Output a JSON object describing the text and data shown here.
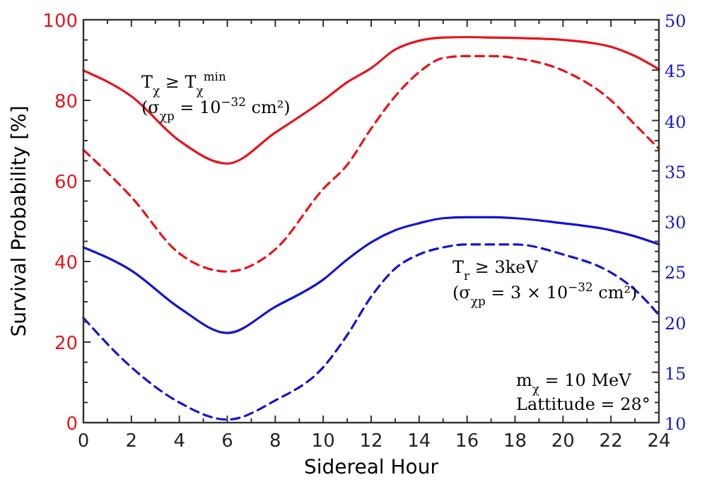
{
  "chart_data": {
    "type": "line",
    "xlabel": "Sidereal Hour",
    "ylabel": "Survival Probability [%]",
    "x": [
      0,
      2,
      4,
      6,
      8,
      10,
      11,
      12,
      13,
      14,
      15,
      16,
      17,
      18,
      20,
      22,
      23,
      24
    ],
    "xlim": [
      0,
      24
    ],
    "xticks": [
      0,
      2,
      4,
      6,
      8,
      10,
      12,
      14,
      16,
      18,
      20,
      22,
      24
    ],
    "ylim": [
      0,
      100
    ],
    "yticks": [
      0,
      20,
      40,
      60,
      80,
      100
    ],
    "y2lim": [
      10,
      50
    ],
    "y2ticks": [
      10,
      15,
      20,
      25,
      30,
      35,
      40,
      45,
      50
    ],
    "grid": false,
    "marker": "none",
    "series": [
      {
        "color": "#e8141c",
        "line_style": "solid",
        "values": [
          87.4,
          81,
          70,
          64.3,
          72,
          80,
          84.5,
          88,
          92.6,
          94.8,
          95.6,
          95.7,
          95.6,
          95.5,
          95,
          93.3,
          91,
          87.7
        ]
      },
      {
        "color": "#e8141c",
        "line_style": "dashed",
        "values": [
          67.7,
          56,
          42,
          37.5,
          43,
          58,
          64,
          73,
          81,
          87,
          90.5,
          91,
          91,
          90.5,
          87.4,
          80,
          74,
          68
        ]
      },
      {
        "color": "#1414d2",
        "line_style": "solid",
        "axis": "y2",
        "values": [
          27.4,
          25.1,
          21.4,
          18.9,
          21.5,
          24.2,
          26.2,
          27.9,
          29.1,
          29.8,
          30.3,
          30.4,
          30.4,
          30.3,
          29.8,
          29.1,
          28.5,
          27.7
        ]
      },
      {
        "color": "#1414d2",
        "line_style": "dashed",
        "axis": "y2",
        "values": [
          20.4,
          15.5,
          12,
          10.3,
          12.2,
          15.5,
          18.7,
          22.5,
          25.3,
          26.7,
          27.4,
          27.7,
          27.7,
          27.7,
          26.7,
          24.9,
          23.2,
          20.7
        ]
      }
    ],
    "annotations": [
      "T$_{χ}$ ≥ T$_{χ}$$^{min}$",
      "(σ$_{χp}$ = 10$^{−32}$ cm²)",
      "T$_{r}$ ≥ 3keV",
      "(σ$_{χp}$ = 3 × 10$^{−32}$ cm²)",
      "m$_{χ}$ = 10 MeV",
      "Lattitude = 28°"
    ]
  }
}
